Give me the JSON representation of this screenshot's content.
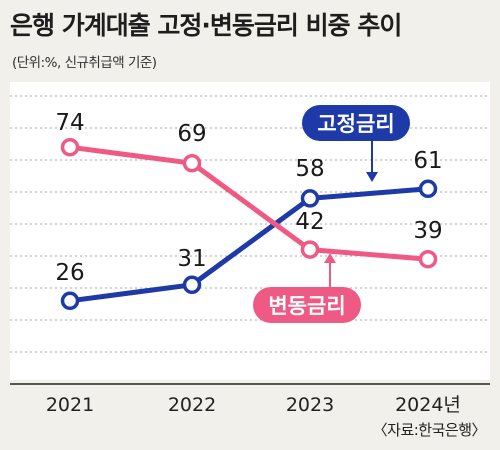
{
  "title": "은행 가계대출 고정·변동금리 비중 추이",
  "subtitle": "(단위:%, 신규취급액 기준)",
  "source": "〈자료:한국은행〉",
  "colors": {
    "fixed": "#1e3aa8",
    "variable": "#ef5a85",
    "grid": "#aaaaaa",
    "plot_bg": "#ffffff",
    "page_bg": "#f2f0ea"
  },
  "chart_data": {
    "type": "line",
    "title": "은행 가계대출 고정·변동금리 비중 추이",
    "subtitle": "(단위:%, 신규취급액 기준)",
    "x": [
      "2021",
      "2022",
      "2023",
      "2024년"
    ],
    "xlabel": "",
    "ylabel": "",
    "ylim": [
      0,
      100
    ],
    "grid": true,
    "series": [
      {
        "name": "고정금리",
        "values": [
          26,
          31,
          58,
          61
        ],
        "color": "#1e3aa8"
      },
      {
        "name": "변동금리",
        "values": [
          74,
          69,
          42,
          39
        ],
        "color": "#ef5a85"
      }
    ],
    "legend": "direct labels"
  }
}
